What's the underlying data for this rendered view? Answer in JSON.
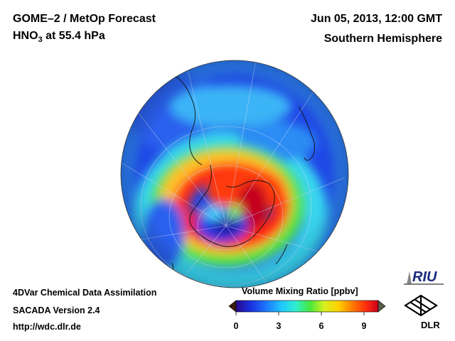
{
  "header": {
    "product": "GOME–2 / MetOp Forecast",
    "species_prefix": "HNO",
    "species_subscript": "3",
    "species_suffix": " at 55.4 hPa",
    "datetime": "Jun 05, 2013, 12:00 GMT",
    "region": "Southern Hemisphere"
  },
  "footer": {
    "line1": "4DVar Chemical Data Assimilation",
    "line2": "SACADA Version 2.4",
    "line3": "http://wdc.dlr.de"
  },
  "colorbar": {
    "title": "Volume Mixing Ratio [ppbv]",
    "ticks": [
      "0",
      "3",
      "6",
      "9"
    ],
    "min": 0,
    "max": 10,
    "colors": [
      "#2a0a8a",
      "#1a2ee0",
      "#1d7dff",
      "#20c8ff",
      "#2ff0d0",
      "#45e83a",
      "#d8f020",
      "#ffd000",
      "#ff7a00",
      "#ff2a10",
      "#c8001a"
    ]
  },
  "logos": {
    "riu": "RIU",
    "dlr": "DLR"
  },
  "map": {
    "projection": "orthographic",
    "hemisphere": "south"
  }
}
